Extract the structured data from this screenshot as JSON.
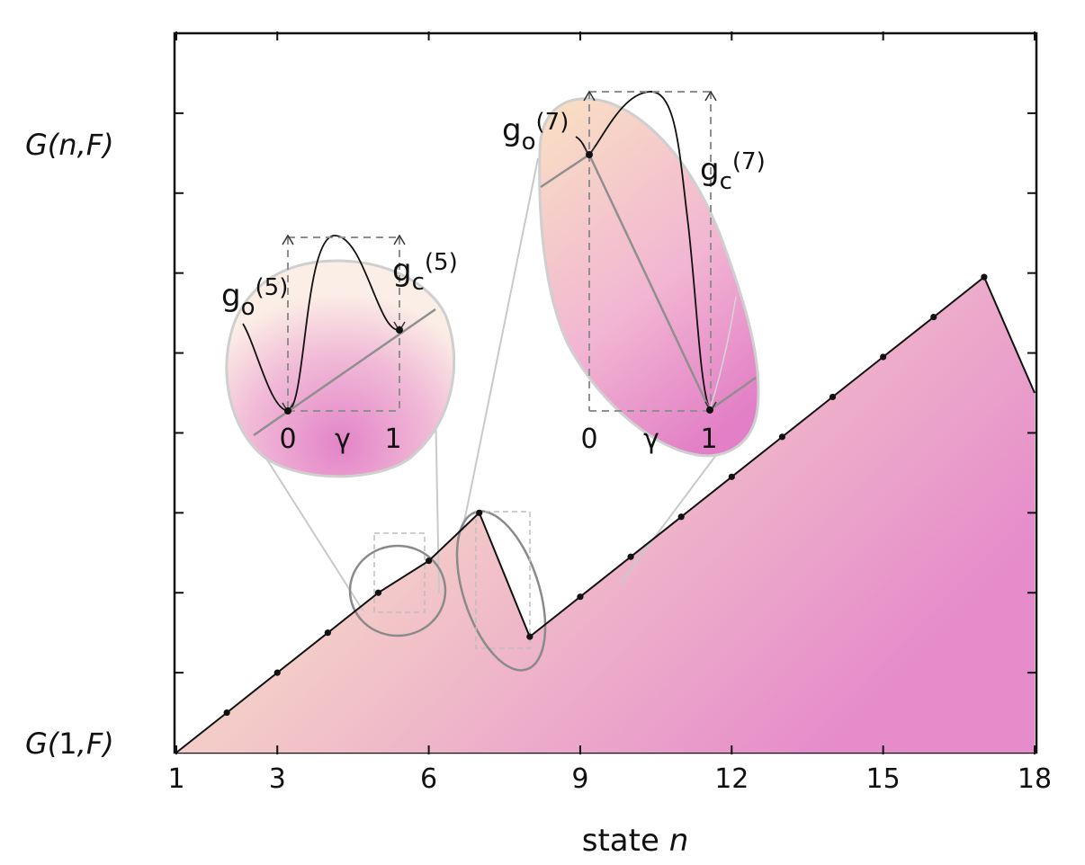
{
  "chart_data": {
    "type": "line",
    "xlabel": "state n",
    "xlabel_parts": [
      "state ",
      "n"
    ],
    "ylabel_top": "G(n,F)",
    "ylabel_bottom": "G(1,F)",
    "ylabel_top_parts": [
      "G(",
      "n",
      ",",
      "F",
      ")"
    ],
    "ylabel_bottom_parts": [
      "G(",
      "1",
      ",",
      "F",
      ")"
    ],
    "x_ticks": [
      1,
      3,
      6,
      9,
      12,
      15,
      18
    ],
    "xlim": [
      1,
      18
    ],
    "ylim": [
      0,
      9
    ],
    "y_tick_count": 9,
    "grid": false,
    "fill": "gradient from peach (#f6dcc4) at lower left to magenta (#e98fcc) at lower right",
    "x": [
      1,
      2,
      3,
      4,
      5,
      6,
      7,
      8,
      9,
      10,
      11,
      12,
      13,
      14,
      15,
      16,
      17,
      18
    ],
    "y": [
      0,
      0.5,
      1,
      1.5,
      2,
      2.4,
      3,
      1.45,
      1.95,
      2.45,
      2.95,
      3.45,
      3.95,
      4.45,
      4.95,
      5.45,
      5.95,
      4.5
    ],
    "markers_at": [
      2,
      3,
      4,
      5,
      6,
      7,
      8,
      9,
      10,
      11,
      12,
      13,
      14,
      15,
      16,
      17
    ],
    "insets": [
      {
        "state": 5,
        "labels": [
          "g",
          "o",
          "(5)",
          "g",
          "c",
          "(5)"
        ],
        "axis_labels": [
          "0",
          "γ",
          "1"
        ]
      },
      {
        "state": 7,
        "labels": [
          "g",
          "o",
          "(7)",
          "g",
          "c",
          "(7)"
        ],
        "axis_labels": [
          "0",
          "γ",
          "1"
        ]
      }
    ]
  }
}
